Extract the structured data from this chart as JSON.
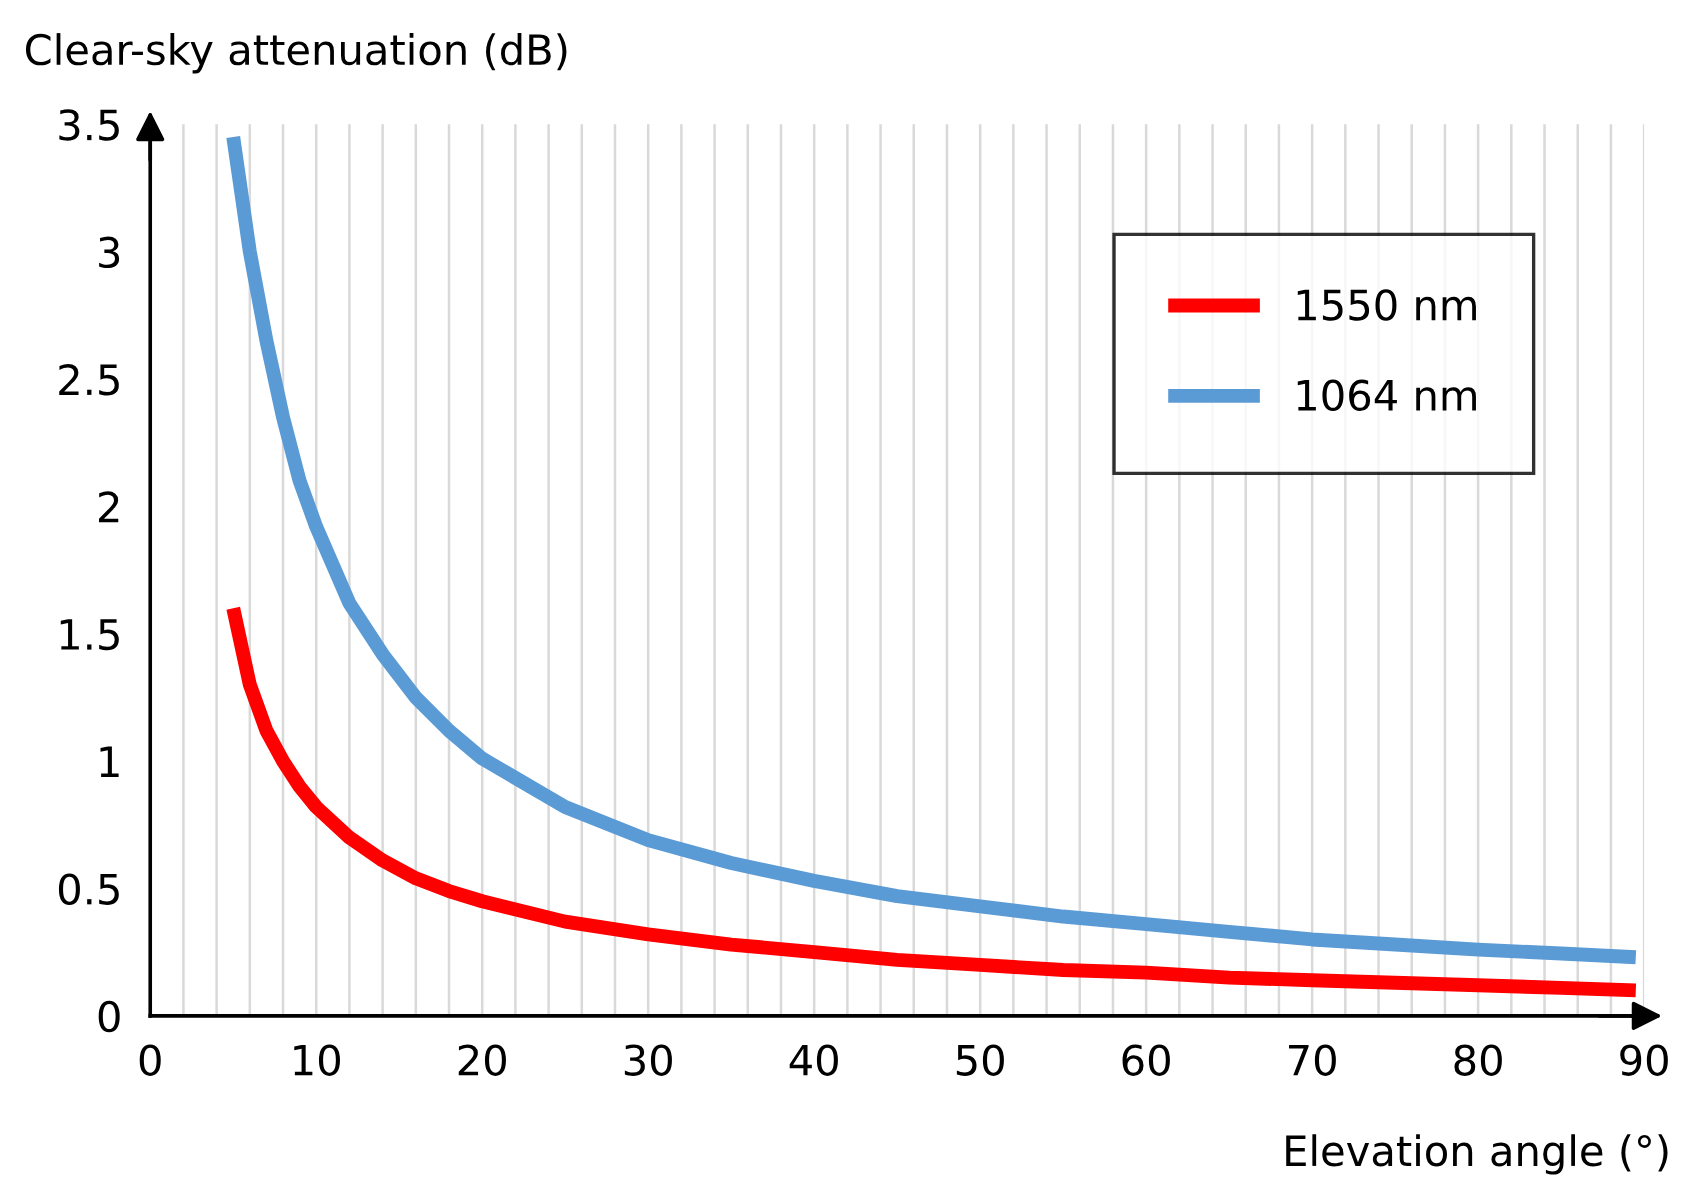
{
  "chart_data": {
    "type": "line",
    "ylabel": "Clear-sky attenuation (dB)",
    "xlabel": "Elevation angle (°)",
    "xlim": [
      0,
      90
    ],
    "ylim": [
      0,
      3.5
    ],
    "xticks": [
      0,
      {
        "value": 2,
        "label": null
      },
      {
        "value": 4,
        "label": null
      },
      {
        "value": 6,
        "label": null
      },
      {
        "value": 8,
        "label": null
      },
      10,
      {
        "value": 12,
        "label": null
      },
      {
        "value": 14,
        "label": null
      },
      {
        "value": 16,
        "label": null
      },
      {
        "value": 18,
        "label": null
      },
      20,
      {
        "value": 22,
        "label": null
      },
      {
        "value": 24,
        "label": null
      },
      {
        "value": 26,
        "label": null
      },
      {
        "value": 28,
        "label": null
      },
      30,
      {
        "value": 32,
        "label": null
      },
      {
        "value": 34,
        "label": null
      },
      {
        "value": 36,
        "label": null
      },
      {
        "value": 38,
        "label": null
      },
      40,
      {
        "value": 42,
        "label": null
      },
      {
        "value": 44,
        "label": null
      },
      {
        "value": 46,
        "label": null
      },
      {
        "value": 48,
        "label": null
      },
      50,
      {
        "value": 52,
        "label": null
      },
      {
        "value": 54,
        "label": null
      },
      {
        "value": 56,
        "label": null
      },
      {
        "value": 58,
        "label": null
      },
      60,
      {
        "value": 62,
        "label": null
      },
      {
        "value": 64,
        "label": null
      },
      {
        "value": 66,
        "label": null
      },
      {
        "value": 68,
        "label": null
      },
      70,
      {
        "value": 72,
        "label": null
      },
      {
        "value": 74,
        "label": null
      },
      {
        "value": 76,
        "label": null
      },
      {
        "value": 78,
        "label": null
      },
      80,
      {
        "value": 82,
        "label": null
      },
      {
        "value": 84,
        "label": null
      },
      {
        "value": 86,
        "label": null
      },
      {
        "value": 88,
        "label": null
      },
      90
    ],
    "yticks": [
      0,
      0.5,
      1,
      1.5,
      2,
      2.5,
      3,
      3.5
    ],
    "grid": "x",
    "legend": "top right",
    "marker": "none",
    "line_style": "solid",
    "series": [
      {
        "name": "1550 nm",
        "color": "#ff0000",
        "x": [
          5,
          6,
          7,
          8,
          9,
          10,
          12,
          14,
          16,
          18,
          20,
          25,
          30,
          35,
          40,
          45,
          50,
          55,
          60,
          65,
          70,
          75,
          80,
          85,
          89.5
        ],
        "values": [
          1.6,
          1.3,
          1.12,
          1.0,
          0.9,
          0.82,
          0.7,
          0.61,
          0.54,
          0.49,
          0.45,
          0.37,
          0.32,
          0.28,
          0.25,
          0.22,
          0.2,
          0.18,
          0.17,
          0.15,
          0.14,
          0.13,
          0.12,
          0.11,
          0.1
        ]
      },
      {
        "name": "1064 nm",
        "color": "#5b9bd5",
        "x": [
          5,
          6,
          7,
          8,
          9,
          10,
          12,
          14,
          16,
          18,
          20,
          25,
          30,
          35,
          40,
          45,
          50,
          55,
          60,
          65,
          70,
          75,
          80,
          85,
          89.5
        ],
        "values": [
          3.45,
          3.0,
          2.65,
          2.35,
          2.1,
          1.92,
          1.62,
          1.42,
          1.25,
          1.12,
          1.01,
          0.82,
          0.69,
          0.6,
          0.53,
          0.47,
          0.43,
          0.39,
          0.36,
          0.33,
          0.3,
          0.28,
          0.26,
          0.245,
          0.23
        ]
      }
    ]
  }
}
